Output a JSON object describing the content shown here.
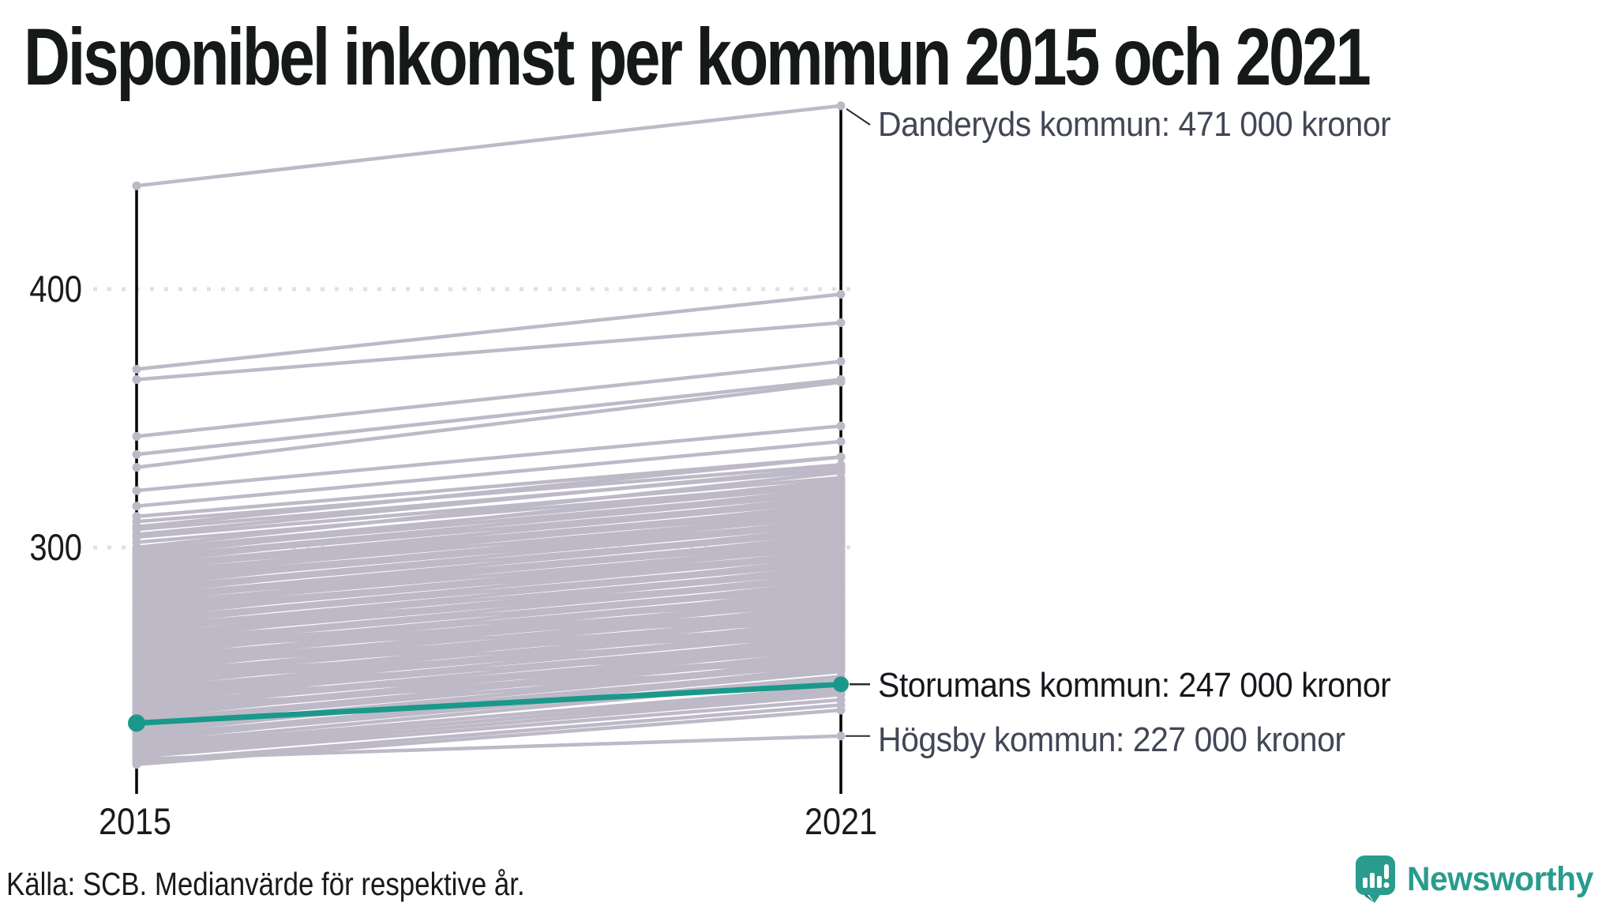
{
  "title": "Disponibel inkomst per kommun 2015 och 2021",
  "source": "Källa: SCB. Medianvärde för respektive år.",
  "logo": {
    "text": "Newsworthy",
    "color": "#2a9c8d"
  },
  "annotations": {
    "danderyd": {
      "label": "Danderyds kommun: 471 000 kronor"
    },
    "storuman": {
      "label": "Storumans kommun: 247 000 kronor"
    },
    "hogsby": {
      "label": "Högsby kommun: 227 000 kronor"
    }
  },
  "chart_data": {
    "type": "line",
    "variant": "slopegraph",
    "title": "Disponibel inkomst per kommun 2015 och 2021",
    "x_categories": [
      "2015",
      "2021"
    ],
    "y_ticks": [
      "400",
      "300"
    ],
    "y_tick_values": [
      400,
      300
    ],
    "ylim": [
      205,
      480
    ],
    "grid": "dotted-horizontal",
    "colors": {
      "background_line": "#beb9c7",
      "highlight": "#1a998a",
      "axis": "#000000",
      "grid_dot": "#e1e0e4"
    },
    "highlight_series": {
      "name": "Storumans kommun",
      "values": [
        232,
        247
      ],
      "color": "#1a998a"
    },
    "annotated_points": [
      {
        "label": "Danderyds kommun: 471 000 kronor",
        "year": "2021",
        "value": 471,
        "values": [
          440,
          471
        ]
      },
      {
        "label": "Storumans kommun: 247 000 kronor",
        "year": "2021",
        "value": 247,
        "values": [
          232,
          247
        ]
      },
      {
        "label": "Högsby kommun: 227 000 kronor",
        "year": "2021",
        "value": 227,
        "values": [
          218,
          227
        ]
      }
    ],
    "background_series_pairs": [
      [
        440,
        471
      ],
      [
        369,
        398
      ],
      [
        365,
        387
      ],
      [
        343,
        372
      ],
      [
        336,
        365
      ],
      [
        331,
        364
      ],
      [
        322,
        347
      ],
      [
        316,
        341
      ],
      [
        312,
        335
      ],
      [
        310,
        332
      ],
      [
        308,
        335
      ],
      [
        307,
        330
      ],
      [
        305,
        331
      ],
      [
        304,
        327
      ],
      [
        302,
        325
      ],
      [
        300,
        329
      ],
      [
        299,
        324
      ],
      [
        298,
        322
      ],
      [
        297,
        326
      ],
      [
        296,
        321
      ],
      [
        295,
        319
      ],
      [
        294,
        323
      ],
      [
        293,
        318
      ],
      [
        292,
        316
      ],
      [
        291,
        320
      ],
      [
        290,
        315
      ],
      [
        289,
        313
      ],
      [
        288,
        317
      ],
      [
        287,
        312
      ],
      [
        286,
        310
      ],
      [
        285,
        314
      ],
      [
        284,
        309
      ],
      [
        283,
        307
      ],
      [
        282,
        311
      ],
      [
        281,
        306
      ],
      [
        280,
        304
      ],
      [
        279,
        308
      ],
      [
        278,
        303
      ],
      [
        277,
        301
      ],
      [
        276,
        305
      ],
      [
        275,
        300
      ],
      [
        274,
        298
      ],
      [
        273,
        302
      ],
      [
        272,
        297
      ],
      [
        271,
        295
      ],
      [
        270,
        299
      ],
      [
        269,
        294
      ],
      [
        268,
        292
      ],
      [
        267,
        296
      ],
      [
        266,
        291
      ],
      [
        265,
        289
      ],
      [
        264,
        293
      ],
      [
        263,
        288
      ],
      [
        262,
        286
      ],
      [
        261,
        290
      ],
      [
        260,
        285
      ],
      [
        259,
        283
      ],
      [
        258,
        287
      ],
      [
        257,
        282
      ],
      [
        256,
        280
      ],
      [
        255,
        284
      ],
      [
        254,
        279
      ],
      [
        253,
        277
      ],
      [
        252,
        281
      ],
      [
        251,
        276
      ],
      [
        250,
        274
      ],
      [
        249,
        278
      ],
      [
        248,
        273
      ],
      [
        247,
        271
      ],
      [
        246,
        275
      ],
      [
        245,
        270
      ],
      [
        244,
        268
      ],
      [
        243,
        272
      ],
      [
        242,
        267
      ],
      [
        241,
        265
      ],
      [
        240,
        269
      ],
      [
        239,
        264
      ],
      [
        238,
        262
      ],
      [
        237,
        266
      ],
      [
        236,
        261
      ],
      [
        264,
        284
      ],
      [
        260,
        278
      ],
      [
        256,
        274
      ],
      [
        252,
        270
      ],
      [
        248,
        266
      ],
      [
        244,
        262
      ],
      [
        240,
        258
      ],
      [
        262,
        280
      ],
      [
        258,
        276
      ],
      [
        254,
        272
      ],
      [
        250,
        268
      ],
      [
        246,
        260
      ],
      [
        242,
        256
      ],
      [
        238,
        254
      ],
      [
        268,
        288
      ],
      [
        272,
        294
      ],
      [
        276,
        298
      ],
      [
        280,
        302
      ],
      [
        284,
        306
      ],
      [
        288,
        310
      ],
      [
        292,
        314
      ],
      [
        296,
        318
      ],
      [
        235,
        259
      ],
      [
        234,
        263
      ],
      [
        233,
        258
      ],
      [
        232,
        256
      ],
      [
        231,
        260
      ],
      [
        230,
        255
      ],
      [
        229,
        253
      ],
      [
        228,
        257
      ],
      [
        227,
        252
      ],
      [
        226,
        250
      ],
      [
        225,
        254
      ],
      [
        224,
        249
      ],
      [
        223,
        246
      ],
      [
        222,
        244
      ],
      [
        221,
        245
      ],
      [
        220,
        243
      ],
      [
        219,
        241
      ],
      [
        218,
        227
      ],
      [
        217,
        239
      ],
      [
        216,
        237
      ]
    ]
  },
  "layout_values": {
    "x2015": 173,
    "x2021": 1065,
    "y400": 366,
    "y300": 693,
    "axis_bottom": 1005,
    "grid_x1": 118,
    "grid_x2": 1090
  }
}
